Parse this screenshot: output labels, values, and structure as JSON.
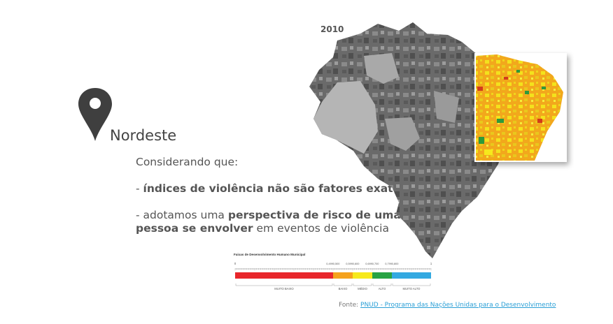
{
  "region": {
    "name": "Nordeste",
    "pin_icon": "map-pin-icon"
  },
  "year": "2010",
  "intro": "Considerando que:",
  "bullet1": {
    "prefix": "- ",
    "bold": "índices de violência não são fatores exatos"
  },
  "bullet2": {
    "prefix": "- adotamos uma ",
    "bold1": "perspectiva de risco de uma",
    "bold2": "pessoa se envolver",
    "suffix": " em eventos de violência"
  },
  "legend": {
    "title": "Faixas  de Desenvolvimento Humano Municipal",
    "scale_start": "0",
    "scale_end": "1",
    "ticks": [
      "0,499",
      "0,500",
      "0,599",
      "0,600",
      "0,699",
      "0,700",
      "0,799",
      "0,800"
    ],
    "bands": [
      {
        "label": "MUITO BAIXO",
        "color": "#e8262b"
      },
      {
        "label": "BAIXO",
        "color": "#f5a21c"
      },
      {
        "label": "MÉDIO",
        "color": "#f6e91c"
      },
      {
        "label": "ALTO",
        "color": "#27a343"
      },
      {
        "label": "MUITO ALTO",
        "color": "#33a9e1"
      }
    ]
  },
  "source": {
    "label": "Fonte: ",
    "link": "PNUD - Programa das Nações Unidas para o Desenvolvimento"
  },
  "colors": {
    "map_dark": "#5f5f5f",
    "map_light": "#b9b9b9",
    "text": "#555555",
    "link": "#2a9fd6"
  }
}
